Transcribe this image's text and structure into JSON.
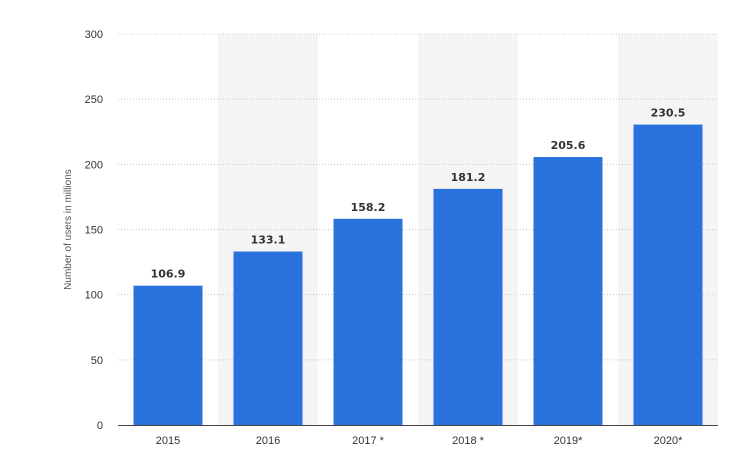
{
  "chart_data": {
    "type": "bar",
    "categories": [
      "2015",
      "2016",
      "2017 *",
      "2018 *",
      "2019*",
      "2020*"
    ],
    "values": [
      106.9,
      133.1,
      158.2,
      181.2,
      205.6,
      230.5
    ],
    "data_labels": [
      "106.9",
      "133.1",
      "158.2",
      "181.2",
      "205.6",
      "230.5"
    ],
    "title": "",
    "xlabel": "",
    "ylabel": "Number of users in millions",
    "ylim": [
      0,
      300
    ],
    "yticks": [
      0,
      50,
      100,
      150,
      200,
      250,
      300
    ],
    "grid": true,
    "legend": "none",
    "bar_color": "#2a73dc",
    "band_color": "#f5f5f5"
  }
}
